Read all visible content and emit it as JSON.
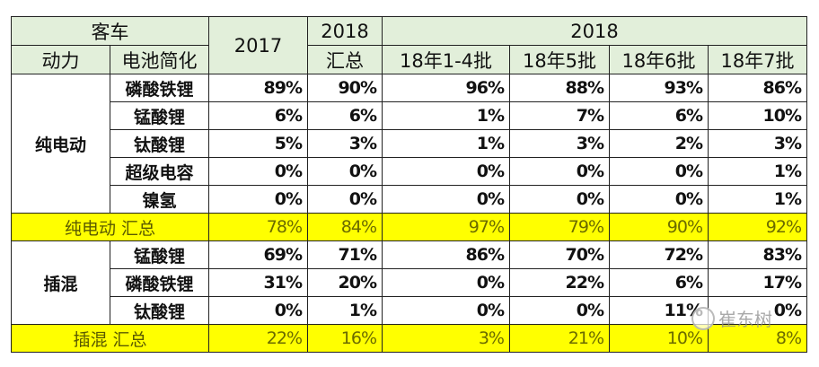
{
  "header": {
    "category": "客车",
    "col_power": "动力",
    "col_battery": "电池简化",
    "col_2017": "2017",
    "col_2018_total_year": "2018",
    "col_2018_total_label": "汇总",
    "col_2018_group": "2018",
    "batches": [
      "18年1-4批",
      "18年5批",
      "18年6批",
      "18年7批"
    ]
  },
  "groups": [
    {
      "name": "纯电动",
      "rows": [
        {
          "battery": "磷酸铁锂",
          "values": [
            "89%",
            "90%",
            "96%",
            "88%",
            "93%",
            "86%"
          ]
        },
        {
          "battery": "锰酸锂",
          "values": [
            "6%",
            "6%",
            "1%",
            "7%",
            "6%",
            "10%"
          ]
        },
        {
          "battery": "钛酸锂",
          "values": [
            "5%",
            "3%",
            "1%",
            "3%",
            "2%",
            "3%"
          ]
        },
        {
          "battery": "超级电容",
          "values": [
            "0%",
            "0%",
            "0%",
            "0%",
            "0%",
            "1%"
          ]
        },
        {
          "battery": "镍氢",
          "values": [
            "0%",
            "0%",
            "0%",
            "0%",
            "0%",
            "1%"
          ]
        }
      ],
      "summary": {
        "label": "纯电动 汇总",
        "values": [
          "78%",
          "84%",
          "97%",
          "79%",
          "90%",
          "92%"
        ]
      }
    },
    {
      "name": "插混",
      "rows": [
        {
          "battery": "锰酸锂",
          "values": [
            "69%",
            "71%",
            "86%",
            "70%",
            "72%",
            "83%"
          ]
        },
        {
          "battery": "磷酸铁锂",
          "values": [
            "31%",
            "20%",
            "0%",
            "22%",
            "6%",
            "17%"
          ]
        },
        {
          "battery": "钛酸锂",
          "values": [
            "0%",
            "1%",
            "0%",
            "0%",
            "11%",
            "0%"
          ]
        }
      ],
      "summary": {
        "label": "插混 汇总",
        "values": [
          "22%",
          "16%",
          "3%",
          "21%",
          "10%",
          "8%"
        ]
      }
    }
  ],
  "watermark": "崔东树",
  "colors": {
    "header_bg": "#e2efda",
    "summary_bg": "#ffff00"
  }
}
